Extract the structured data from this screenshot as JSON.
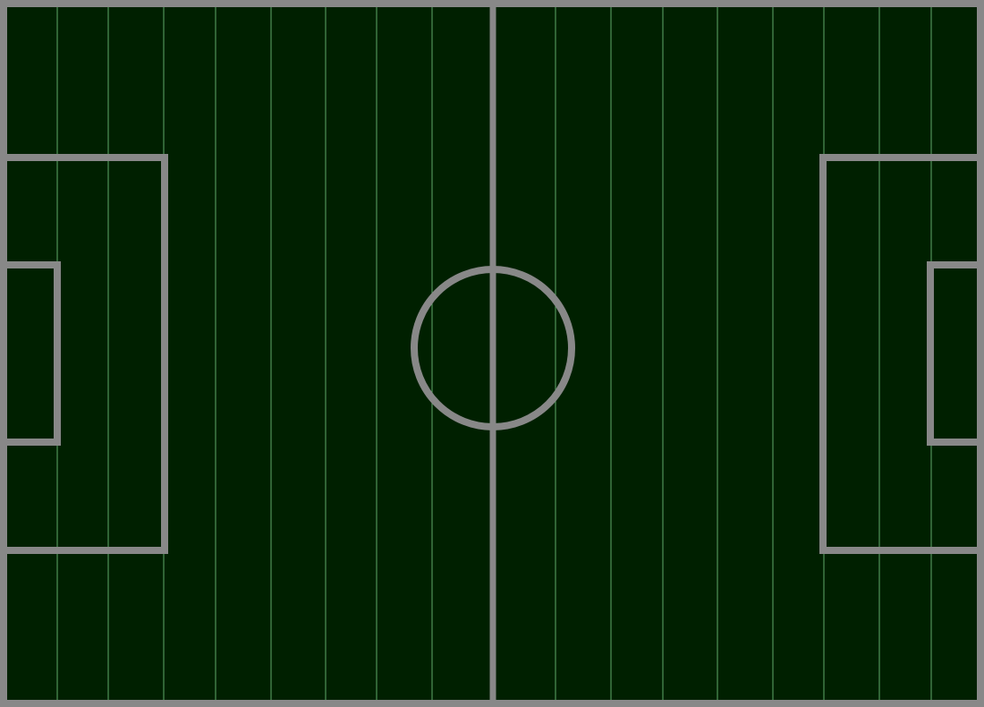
{
  "pitch": {
    "turf_color": "#002000",
    "line_color": "#888888",
    "stripe_color": "#5fa86a",
    "stripe_count": 18
  },
  "icons": {
    "center_circle": "circle-outline",
    "halfway_line": "vertical-line",
    "penalty_area": "rectangle-outline",
    "goal_area": "rectangle-outline"
  }
}
